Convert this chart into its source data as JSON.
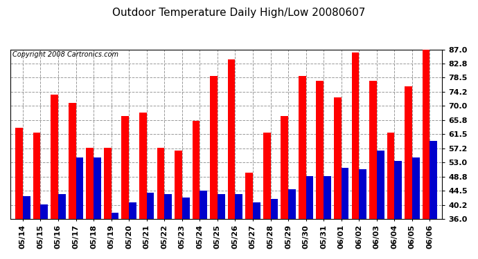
{
  "title": "Outdoor Temperature Daily High/Low 20080607",
  "copyright": "Copyright 2008 Cartronics.com",
  "dates": [
    "05/14",
    "05/15",
    "05/16",
    "05/17",
    "05/18",
    "05/19",
    "05/20",
    "05/21",
    "05/22",
    "05/23",
    "05/24",
    "05/25",
    "05/26",
    "05/27",
    "05/28",
    "05/29",
    "05/30",
    "05/31",
    "06/01",
    "06/02",
    "06/03",
    "06/04",
    "06/05",
    "06/06"
  ],
  "highs": [
    63.5,
    62.0,
    73.5,
    71.0,
    57.5,
    57.5,
    67.0,
    68.0,
    57.5,
    56.5,
    65.5,
    79.0,
    84.0,
    50.0,
    62.0,
    67.0,
    79.0,
    77.5,
    72.5,
    86.0,
    77.5,
    62.0,
    76.0,
    87.0
  ],
  "lows": [
    43.0,
    40.5,
    43.5,
    54.5,
    54.5,
    38.0,
    41.0,
    44.0,
    43.5,
    42.5,
    44.5,
    43.5,
    43.5,
    41.0,
    42.0,
    45.0,
    49.0,
    49.0,
    51.5,
    51.0,
    56.5,
    53.5,
    54.5,
    59.5
  ],
  "yticks": [
    36.0,
    40.2,
    44.5,
    48.8,
    53.0,
    57.2,
    61.5,
    65.8,
    70.0,
    74.2,
    78.5,
    82.8,
    87.0
  ],
  "ymin": 36.0,
  "ymax": 87.0,
  "high_color": "#ff0000",
  "low_color": "#0000cc",
  "bg_color": "#ffffff",
  "grid_color": "#999999",
  "title_fontsize": 11,
  "copyright_fontsize": 7,
  "tick_fontsize": 8,
  "bar_width": 0.42
}
